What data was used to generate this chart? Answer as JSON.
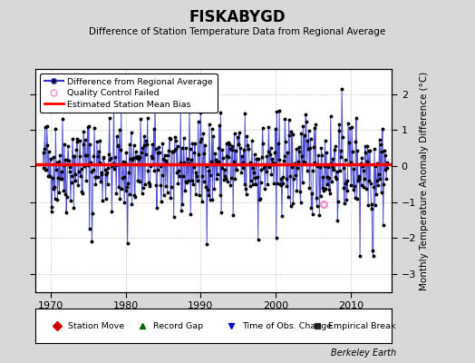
{
  "title": "FISKABYGD",
  "subtitle": "Difference of Station Temperature Data from Regional Average",
  "ylabel": "Monthly Temperature Anomaly Difference (°C)",
  "xlabel_bottom": "Berkeley Earth",
  "bias": 0.05,
  "xlim": [
    1968.0,
    2015.5
  ],
  "ylim": [
    -3.5,
    2.7
  ],
  "yticks": [
    -3,
    -2,
    -1,
    0,
    1,
    2
  ],
  "xticks": [
    1970,
    1980,
    1990,
    2000,
    2010
  ],
  "bg_color": "#d8d8d8",
  "plot_bg_color": "#ffffff",
  "line_color": "#3333cc",
  "dot_color": "#000000",
  "bias_color": "#ff0000",
  "grid_color": "#cccccc",
  "qc_fail_color": "#ff88cc",
  "seed": 42,
  "n_months": 552,
  "start_year": 1969.0,
  "bottom_items_labels": [
    "Station Move",
    "Record Gap",
    "Time of Obs. Change",
    "Empirical Break"
  ],
  "bottom_items_markers": [
    "D",
    "^",
    "v",
    "s"
  ],
  "bottom_items_colors": [
    "#cc0000",
    "#006600",
    "#0000cc",
    "#333333"
  ]
}
